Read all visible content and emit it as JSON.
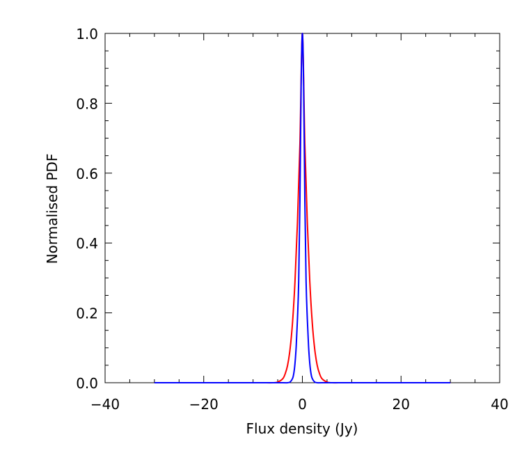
{
  "chart_data": {
    "type": "line",
    "title": "",
    "xlabel": "Flux density (Jy)",
    "ylabel": "Normalised PDF",
    "xlim": [
      -40,
      40
    ],
    "ylim": [
      0.0,
      1.0
    ],
    "xticks": [
      -40,
      -20,
      0,
      20,
      40
    ],
    "xtick_labels": [
      "−40",
      "−20",
      "0",
      "20",
      "40"
    ],
    "yticks": [
      0.0,
      0.2,
      0.4,
      0.6,
      0.8,
      1.0
    ],
    "ytick_labels": [
      "0.0",
      "0.2",
      "0.4",
      "0.6",
      "0.8",
      "1.0"
    ],
    "grid": false,
    "series": [
      {
        "color": "#ff0000",
        "x": [
          -30,
          -10,
          -8,
          -6,
          -5,
          -4,
          -3.5,
          -3,
          -2.5,
          -2,
          -1.5,
          -1,
          -0.5,
          0,
          0.5,
          1,
          1.5,
          2,
          2.5,
          3,
          3.5,
          4,
          5,
          6,
          8,
          10,
          30
        ],
        "y": [
          0.0,
          0.0,
          0.0,
          0.0,
          0.002,
          0.011,
          0.025,
          0.05,
          0.096,
          0.172,
          0.29,
          0.458,
          0.683,
          1.0,
          0.683,
          0.458,
          0.29,
          0.172,
          0.096,
          0.05,
          0.025,
          0.011,
          0.002,
          0.0,
          0.0,
          0.0,
          0.0
        ]
      },
      {
        "color": "#0000ff",
        "x": [
          -30,
          -10,
          -4,
          -3,
          -2.5,
          -2,
          -1.75,
          -1.5,
          -1.25,
          -1,
          -0.75,
          -0.5,
          -0.25,
          0,
          0.25,
          0.5,
          0.75,
          1,
          1.25,
          1.5,
          1.75,
          2,
          2.5,
          3,
          4,
          10,
          30
        ],
        "y": [
          0.0,
          0.0,
          0.0,
          0.0,
          0.002,
          0.012,
          0.026,
          0.055,
          0.105,
          0.182,
          0.29,
          0.52,
          0.85,
          1.0,
          0.85,
          0.52,
          0.29,
          0.182,
          0.105,
          0.055,
          0.026,
          0.012,
          0.002,
          0.0,
          0.0,
          0.0,
          0.0
        ]
      }
    ]
  }
}
